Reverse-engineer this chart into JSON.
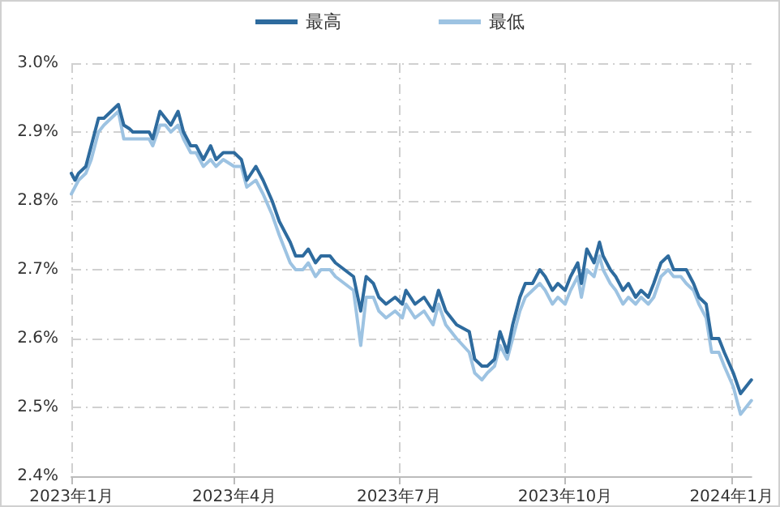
{
  "chart_data": {
    "type": "line",
    "x": [
      "2023-01-01",
      "2023-01-03",
      "2023-01-05",
      "2023-01-09",
      "2023-01-12",
      "2023-01-14",
      "2023-01-16",
      "2023-01-19",
      "2023-01-23",
      "2023-01-27",
      "2023-01-30",
      "2023-02-02",
      "2023-02-04",
      "2023-02-08",
      "2023-02-13",
      "2023-02-15",
      "2023-02-19",
      "2023-02-22",
      "2023-02-25",
      "2023-03-01",
      "2023-03-04",
      "2023-03-08",
      "2023-03-11",
      "2023-03-15",
      "2023-03-19",
      "2023-03-22",
      "2023-03-26",
      "2023-04-01",
      "2023-04-05",
      "2023-04-08",
      "2023-04-13",
      "2023-04-17",
      "2023-04-22",
      "2023-04-26",
      "2023-05-02",
      "2023-05-05",
      "2023-05-09",
      "2023-05-12",
      "2023-05-16",
      "2023-05-19",
      "2023-05-24",
      "2023-05-27",
      "2023-06-01",
      "2023-06-06",
      "2023-06-10",
      "2023-06-13",
      "2023-06-17",
      "2023-06-20",
      "2023-06-24",
      "2023-06-29",
      "2023-07-03",
      "2023-07-05",
      "2023-07-10",
      "2023-07-15",
      "2023-07-20",
      "2023-07-23",
      "2023-07-27",
      "2023-08-02",
      "2023-08-09",
      "2023-08-12",
      "2023-08-16",
      "2023-08-19",
      "2023-08-23",
      "2023-08-26",
      "2023-08-30",
      "2023-09-02",
      "2023-09-06",
      "2023-09-09",
      "2023-09-13",
      "2023-09-17",
      "2023-09-20",
      "2023-09-24",
      "2023-09-27",
      "2023-10-01",
      "2023-10-04",
      "2023-10-08",
      "2023-10-10",
      "2023-10-13",
      "2023-10-17",
      "2023-10-20",
      "2023-10-22",
      "2023-10-26",
      "2023-10-29",
      "2023-11-02",
      "2023-11-05",
      "2023-11-09",
      "2023-11-12",
      "2023-11-16",
      "2023-11-19",
      "2023-11-23",
      "2023-11-27",
      "2023-11-30",
      "2023-12-04",
      "2023-12-07",
      "2023-12-11",
      "2023-12-14",
      "2023-12-18",
      "2023-12-21",
      "2023-12-25",
      "2023-12-28",
      "2024-01-02",
      "2024-01-06",
      "2024-01-09",
      "2024-01-12"
    ],
    "series": [
      {
        "name": "最高",
        "color": "#2e6b9e",
        "values": [
          2.84,
          2.83,
          2.84,
          2.85,
          2.88,
          2.9,
          2.92,
          2.92,
          2.93,
          2.94,
          2.91,
          2.905,
          2.9,
          2.9,
          2.9,
          2.89,
          2.93,
          2.92,
          2.91,
          2.93,
          2.9,
          2.88,
          2.88,
          2.86,
          2.88,
          2.86,
          2.87,
          2.87,
          2.86,
          2.83,
          2.85,
          2.83,
          2.8,
          2.77,
          2.74,
          2.72,
          2.72,
          2.73,
          2.71,
          2.72,
          2.72,
          2.71,
          2.7,
          2.69,
          2.64,
          2.69,
          2.68,
          2.66,
          2.65,
          2.66,
          2.65,
          2.67,
          2.65,
          2.66,
          2.64,
          2.67,
          2.64,
          2.62,
          2.61,
          2.57,
          2.56,
          2.56,
          2.57,
          2.61,
          2.58,
          2.62,
          2.66,
          2.68,
          2.68,
          2.7,
          2.69,
          2.67,
          2.68,
          2.67,
          2.69,
          2.71,
          2.68,
          2.73,
          2.71,
          2.74,
          2.72,
          2.7,
          2.69,
          2.67,
          2.68,
          2.66,
          2.67,
          2.66,
          2.68,
          2.71,
          2.72,
          2.7,
          2.7,
          2.7,
          2.68,
          2.66,
          2.65,
          2.6,
          2.6,
          2.58,
          2.55,
          2.52,
          2.53,
          2.54
        ]
      },
      {
        "name": "最低",
        "color": "#9dc3e2",
        "values": [
          2.81,
          2.82,
          2.83,
          2.84,
          2.86,
          2.88,
          2.9,
          2.91,
          2.92,
          2.93,
          2.89,
          2.89,
          2.89,
          2.89,
          2.89,
          2.88,
          2.91,
          2.91,
          2.9,
          2.91,
          2.89,
          2.87,
          2.87,
          2.85,
          2.86,
          2.85,
          2.86,
          2.85,
          2.85,
          2.82,
          2.83,
          2.81,
          2.78,
          2.75,
          2.71,
          2.7,
          2.7,
          2.71,
          2.69,
          2.7,
          2.7,
          2.69,
          2.68,
          2.67,
          2.59,
          2.66,
          2.66,
          2.64,
          2.63,
          2.64,
          2.63,
          2.65,
          2.63,
          2.64,
          2.62,
          2.65,
          2.62,
          2.6,
          2.58,
          2.55,
          2.54,
          2.55,
          2.56,
          2.59,
          2.57,
          2.6,
          2.64,
          2.66,
          2.67,
          2.68,
          2.67,
          2.65,
          2.66,
          2.65,
          2.67,
          2.69,
          2.66,
          2.7,
          2.69,
          2.72,
          2.7,
          2.68,
          2.67,
          2.65,
          2.66,
          2.65,
          2.66,
          2.65,
          2.66,
          2.69,
          2.7,
          2.69,
          2.69,
          2.68,
          2.67,
          2.65,
          2.63,
          2.58,
          2.58,
          2.56,
          2.53,
          2.49,
          2.5,
          2.51
        ]
      }
    ],
    "xlim": [
      "2023-01-01",
      "2024-01-12"
    ],
    "xticks": [
      {
        "value": "2023-01-01",
        "label": "2023年1月"
      },
      {
        "value": "2023-04-01",
        "label": "2023年4月"
      },
      {
        "value": "2023-07-01",
        "label": "2023年7月"
      },
      {
        "value": "2023-10-01",
        "label": "2023年10月"
      },
      {
        "value": "2024-01-01",
        "label": "2024年1月"
      }
    ],
    "ylim": [
      2.4,
      3.0
    ],
    "yticks": [
      {
        "value": 2.4,
        "label": "2.4%"
      },
      {
        "value": 2.5,
        "label": "2.5%"
      },
      {
        "value": 2.6,
        "label": "2.6%"
      },
      {
        "value": 2.7,
        "label": "2.7%"
      },
      {
        "value": 2.8,
        "label": "2.8%"
      },
      {
        "value": 2.9,
        "label": "2.9%"
      },
      {
        "value": 3.0,
        "label": "3.0%"
      }
    ],
    "grid": true,
    "legend": "top",
    "marker": "none",
    "line_style": "solid"
  }
}
